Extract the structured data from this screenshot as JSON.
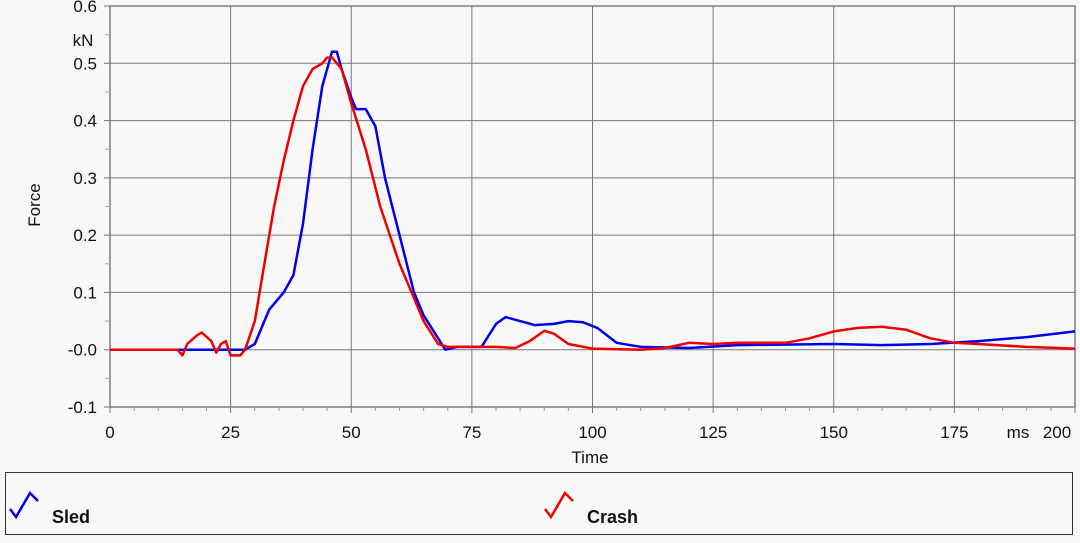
{
  "chart_data": {
    "type": "line",
    "title": "",
    "xlabel": "Time",
    "ylabel": "Force",
    "x_unit": "ms",
    "y_unit": "kN",
    "xlim": [
      0,
      200
    ],
    "ylim": [
      -0.1,
      0.6
    ],
    "xticks": [
      0,
      25,
      50,
      75,
      100,
      125,
      150,
      175,
      200
    ],
    "xtick_labels": [
      "0",
      "25",
      "50",
      "75",
      "100",
      "125",
      "150",
      "175",
      "200"
    ],
    "yticks": [
      -0.1,
      0.0,
      0.1,
      0.2,
      0.3,
      0.4,
      0.5,
      0.6
    ],
    "ytick_labels": [
      "-0.1",
      "-0.0",
      "0.1",
      "0.2",
      "0.3",
      "0.4",
      "0.5",
      "0.6"
    ],
    "grid": true,
    "legend_position": "bottom",
    "series": [
      {
        "name": "Sled",
        "color": "#0000ee",
        "x": [
          0,
          28,
          30,
          33,
          36,
          38,
          40,
          42,
          44,
          46,
          47,
          48,
          50,
          51,
          53,
          55,
          57,
          60,
          63,
          65,
          68,
          69.5,
          72,
          77,
          80,
          82,
          85,
          88,
          92,
          95,
          98,
          101,
          105,
          110,
          120,
          130,
          150,
          160,
          170,
          180,
          190,
          200
        ],
        "y": [
          0,
          0,
          0.01,
          0.07,
          0.1,
          0.13,
          0.22,
          0.35,
          0.46,
          0.52,
          0.52,
          0.49,
          0.44,
          0.42,
          0.42,
          0.39,
          0.3,
          0.2,
          0.1,
          0.06,
          0.02,
          0.0,
          0.005,
          0.005,
          0.045,
          0.057,
          0.05,
          0.043,
          0.045,
          0.05,
          0.048,
          0.038,
          0.012,
          0.005,
          0.003,
          0.008,
          0.01,
          0.008,
          0.01,
          0.015,
          0.022,
          0.032
        ]
      },
      {
        "name": "Crash",
        "color": "#ee0000",
        "x": [
          0,
          14,
          15,
          16,
          18,
          19,
          21,
          22,
          23,
          24,
          25,
          27,
          28,
          30,
          32,
          34,
          36,
          38,
          40,
          42,
          44,
          45,
          46,
          48,
          50,
          53,
          56,
          60,
          63,
          65,
          68,
          70,
          75,
          80,
          84,
          87,
          90,
          92,
          95,
          100,
          110,
          115,
          120,
          125,
          130,
          140,
          145,
          150,
          155,
          160,
          165,
          170,
          175,
          180,
          190,
          200
        ],
        "y": [
          0,
          0,
          -0.01,
          0.01,
          0.025,
          0.03,
          0.015,
          -0.005,
          0.01,
          0.015,
          -0.01,
          -0.01,
          0.0,
          0.05,
          0.15,
          0.25,
          0.33,
          0.4,
          0.46,
          0.49,
          0.5,
          0.51,
          0.51,
          0.49,
          0.43,
          0.35,
          0.25,
          0.15,
          0.09,
          0.05,
          0.01,
          0.005,
          0.005,
          0.005,
          0.003,
          0.015,
          0.033,
          0.028,
          0.01,
          0.002,
          0.0,
          0.003,
          0.012,
          0.01,
          0.012,
          0.012,
          0.02,
          0.032,
          0.038,
          0.04,
          0.035,
          0.02,
          0.012,
          0.01,
          0.005,
          0.002
        ]
      }
    ]
  }
}
